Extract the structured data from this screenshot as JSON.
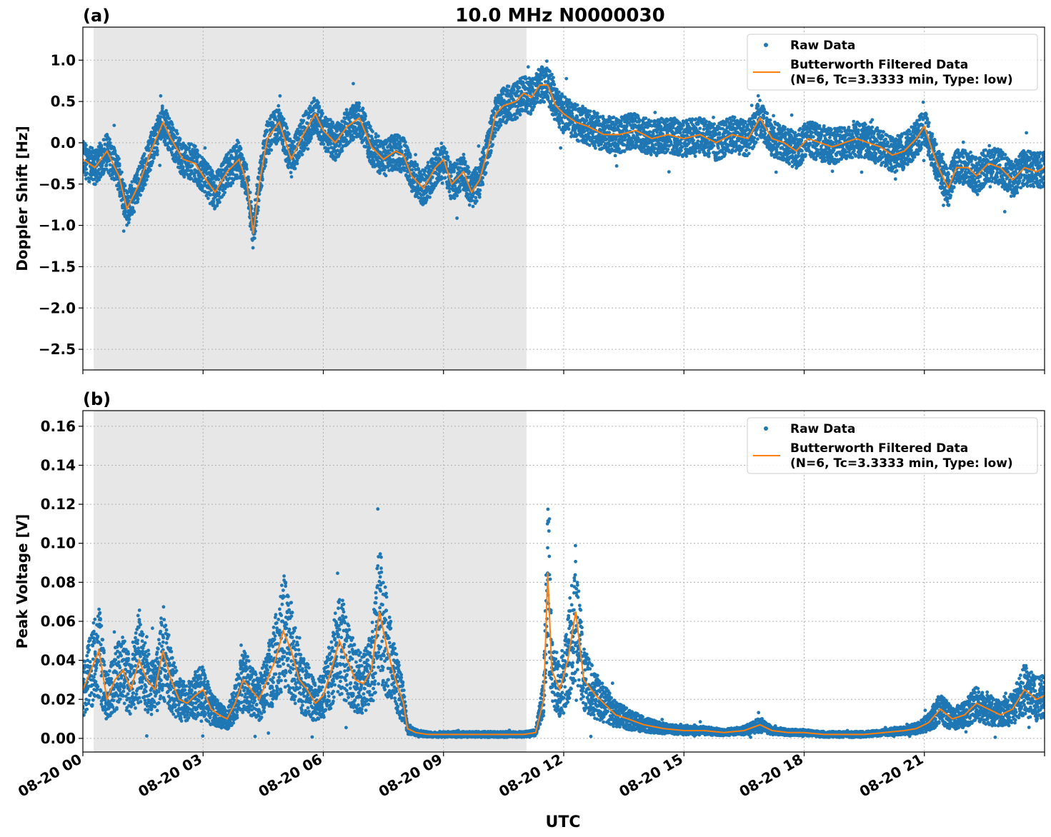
{
  "figure": {
    "title": "10.0 MHz N0000030",
    "xlabel": "UTC",
    "x_ticks": [
      "08-20 00",
      "08-20 03",
      "08-20 06",
      "08-20 09",
      "08-20 12",
      "08-20 15",
      "08-20 18",
      "08-20 21"
    ]
  },
  "chart_data": [
    {
      "type": "scatter",
      "panel_label": "(a)",
      "ylabel": "Doppler Shift [Hz]",
      "xlim_hours": [
        0,
        24
      ],
      "ylim": [
        -2.75,
        1.4
      ],
      "y_ticks": [
        1.0,
        0.5,
        0.0,
        -0.5,
        -1.0,
        -1.5,
        -2.0,
        -2.5
      ],
      "y_tick_labels": [
        "1.0",
        "0.5",
        "0.0",
        "−0.5",
        "−1.0",
        "−1.5",
        "−2.0",
        "−2.5"
      ],
      "shaded_span_hours": [
        0.27,
        11.07
      ],
      "grid": true,
      "legend": {
        "placement": "top-right",
        "entries": [
          "Raw Data",
          "Butterworth Filtered Data",
          "(N=6, Tc=3.3333 min, Type: low)"
        ]
      },
      "series": [
        {
          "name": "Butterworth Filtered Data",
          "x_hours": [
            0,
            0.3,
            0.6,
            0.9,
            1.1,
            1.4,
            1.7,
            2.0,
            2.2,
            2.5,
            2.8,
            3.0,
            3.3,
            3.6,
            3.9,
            4.1,
            4.25,
            4.4,
            4.6,
            4.9,
            5.2,
            5.5,
            5.8,
            6.0,
            6.3,
            6.6,
            6.9,
            7.2,
            7.5,
            7.8,
            8.0,
            8.2,
            8.5,
            8.8,
            9.0,
            9.2,
            9.5,
            9.7,
            9.9,
            10.1,
            10.3,
            10.5,
            10.8,
            11.0,
            11.2,
            11.4,
            11.6,
            11.8,
            12.0,
            12.3,
            12.6,
            13.0,
            13.4,
            13.8,
            14.2,
            14.6,
            15.0,
            15.4,
            15.8,
            16.2,
            16.6,
            16.9,
            17.2,
            17.5,
            17.8,
            18.1,
            18.4,
            18.7,
            19.0,
            19.3,
            19.6,
            19.9,
            20.2,
            20.5,
            20.8,
            21.0,
            21.2,
            21.4,
            21.6,
            21.8,
            22.1,
            22.3,
            22.6,
            22.9,
            23.2,
            23.5,
            23.8,
            24.0
          ],
          "y": [
            -0.2,
            -0.3,
            -0.1,
            -0.4,
            -0.8,
            -0.5,
            -0.1,
            0.25,
            0.05,
            -0.2,
            -0.25,
            -0.4,
            -0.6,
            -0.35,
            -0.2,
            -0.5,
            -1.1,
            -0.5,
            0.05,
            0.25,
            -0.2,
            0.1,
            0.35,
            0.15,
            0.0,
            0.2,
            0.3,
            -0.05,
            -0.2,
            -0.1,
            -0.15,
            -0.4,
            -0.55,
            -0.3,
            -0.2,
            -0.5,
            -0.35,
            -0.6,
            -0.45,
            -0.1,
            0.35,
            0.45,
            0.5,
            0.6,
            0.55,
            0.7,
            0.7,
            0.45,
            0.35,
            0.25,
            0.2,
            0.1,
            0.1,
            0.15,
            0.05,
            0.1,
            0.05,
            0.1,
            0.0,
            0.1,
            0.05,
            0.3,
            0.05,
            0.0,
            -0.1,
            0.05,
            0.0,
            -0.05,
            0.0,
            0.05,
            0.0,
            -0.05,
            -0.15,
            -0.1,
            0.05,
            0.2,
            -0.1,
            -0.35,
            -0.55,
            -0.3,
            -0.3,
            -0.4,
            -0.25,
            -0.3,
            -0.45,
            -0.3,
            -0.35,
            -0.3
          ]
        }
      ]
    },
    {
      "type": "scatter",
      "panel_label": "(b)",
      "ylabel": "Peak Voltage [V]",
      "xlim_hours": [
        0,
        24
      ],
      "ylim": [
        -0.007,
        0.168
      ],
      "y_ticks": [
        0.16,
        0.14,
        0.12,
        0.1,
        0.08,
        0.06,
        0.04,
        0.02,
        0.0
      ],
      "y_tick_labels": [
        "0.16",
        "0.14",
        "0.12",
        "0.10",
        "0.08",
        "0.06",
        "0.04",
        "0.02",
        "0.00"
      ],
      "shaded_span_hours": [
        0.27,
        11.07
      ],
      "grid": true,
      "legend": {
        "placement": "top-right",
        "entries": [
          "Raw Data",
          "Butterworth Filtered Data",
          "(N=6, Tc=3.3333 min, Type: low)"
        ]
      },
      "series": [
        {
          "name": "Butterworth Filtered Data",
          "x_hours": [
            0,
            0.2,
            0.4,
            0.6,
            0.8,
            1.0,
            1.2,
            1.4,
            1.6,
            1.8,
            2.0,
            2.2,
            2.4,
            2.6,
            2.8,
            3.0,
            3.2,
            3.4,
            3.6,
            3.8,
            4.0,
            4.2,
            4.4,
            4.6,
            4.8,
            5.0,
            5.2,
            5.4,
            5.6,
            5.8,
            6.0,
            6.2,
            6.4,
            6.6,
            6.8,
            7.0,
            7.2,
            7.4,
            7.6,
            7.8,
            8.0,
            8.1,
            8.3,
            8.6,
            9.0,
            9.5,
            10.0,
            10.5,
            11.0,
            11.3,
            11.5,
            11.6,
            11.7,
            11.9,
            12.1,
            12.3,
            12.5,
            12.8,
            13.0,
            13.3,
            13.6,
            14.0,
            14.5,
            15.0,
            15.5,
            16.0,
            16.5,
            16.9,
            17.2,
            17.6,
            18.0,
            18.5,
            19.0,
            19.5,
            20.0,
            20.5,
            20.8,
            21.1,
            21.4,
            21.7,
            22.0,
            22.3,
            22.6,
            22.9,
            23.2,
            23.5,
            23.8,
            24.0
          ],
          "y": [
            0.025,
            0.035,
            0.045,
            0.02,
            0.03,
            0.035,
            0.025,
            0.04,
            0.03,
            0.025,
            0.045,
            0.03,
            0.02,
            0.018,
            0.022,
            0.025,
            0.015,
            0.012,
            0.01,
            0.018,
            0.03,
            0.025,
            0.02,
            0.03,
            0.04,
            0.055,
            0.045,
            0.03,
            0.025,
            0.018,
            0.022,
            0.035,
            0.05,
            0.04,
            0.03,
            0.028,
            0.035,
            0.065,
            0.045,
            0.03,
            0.018,
            0.005,
            0.003,
            0.002,
            0.002,
            0.002,
            0.002,
            0.002,
            0.002,
            0.003,
            0.02,
            0.085,
            0.035,
            0.025,
            0.04,
            0.065,
            0.03,
            0.022,
            0.018,
            0.012,
            0.01,
            0.007,
            0.005,
            0.004,
            0.004,
            0.003,
            0.004,
            0.007,
            0.004,
            0.003,
            0.003,
            0.002,
            0.002,
            0.002,
            0.003,
            0.004,
            0.005,
            0.008,
            0.015,
            0.01,
            0.012,
            0.018,
            0.015,
            0.012,
            0.015,
            0.025,
            0.02,
            0.022
          ]
        }
      ]
    }
  ],
  "colors": {
    "raw": "#1f77b4",
    "filtered": "#ff7f0e",
    "shade": "#e7e7e7",
    "grid": "#b0b0b0"
  }
}
